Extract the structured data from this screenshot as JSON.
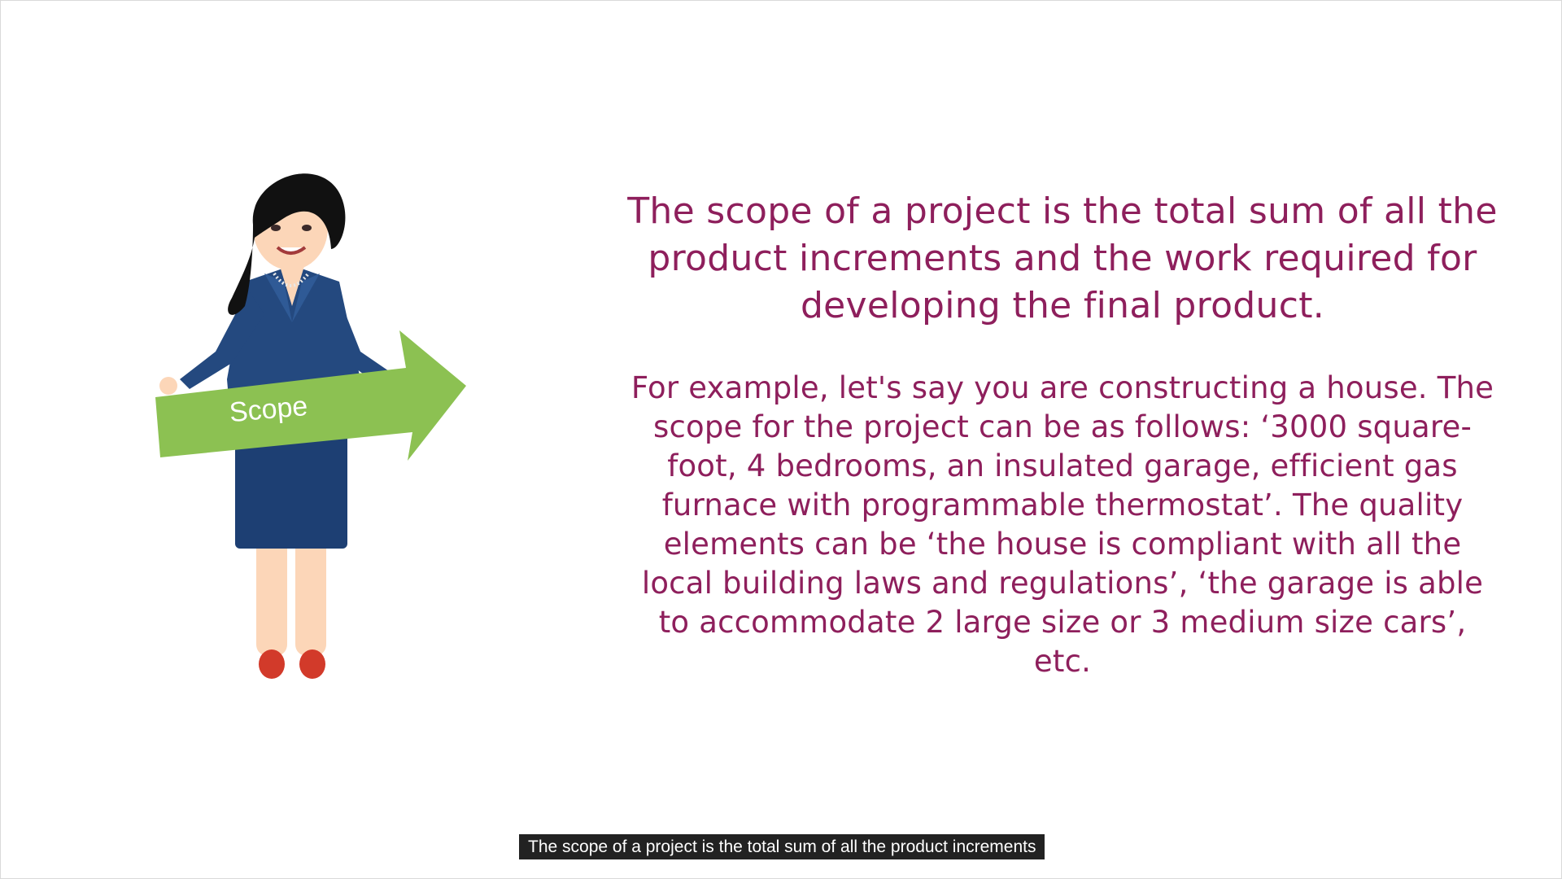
{
  "slide": {
    "arrow_label": "Scope",
    "headline": "The scope of a project is the total sum of all the product increments and the work required for developing the final product.",
    "example": "For example, let's say you are constructing a house. The scope for the project can be as follows: ‘3000 square-foot, 4 bedrooms, an insulated garage, efficient gas furnace with programmable thermostat’. The quality elements can be ‘the house is compliant with all the local building laws and regulations’, ‘the garage is able to accommodate 2 large size or 3 medium size cars’, etc."
  },
  "caption": {
    "text": "The scope of a project is the total sum of all the product increments"
  },
  "colors": {
    "text": "#8e1f5c",
    "arrow": "#8cc152",
    "dress": "#1d3f73",
    "caption_bg": "#222222"
  },
  "icons": {
    "illustration": "woman-holding-arrow"
  }
}
